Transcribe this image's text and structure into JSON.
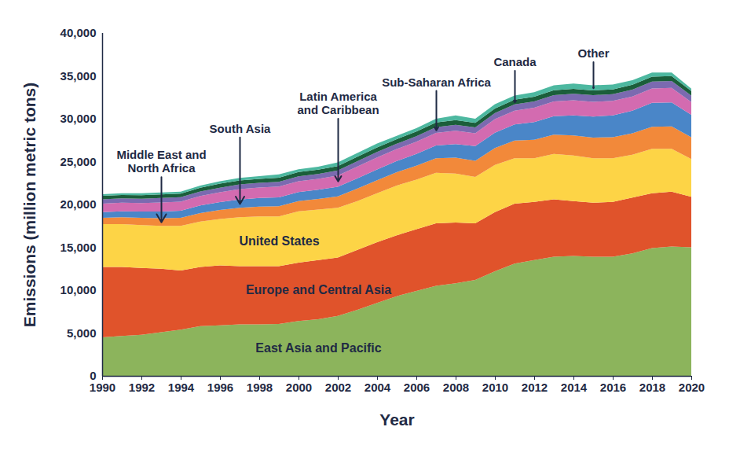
{
  "chart_data": {
    "type": "area",
    "stacked": true,
    "x_label": "Year",
    "y_label": "Emissions (million metric tons)",
    "x": [
      1990,
      1991,
      1992,
      1993,
      1994,
      1995,
      1996,
      1997,
      1998,
      1999,
      2000,
      2001,
      2002,
      2003,
      2004,
      2005,
      2006,
      2007,
      2008,
      2009,
      2010,
      2011,
      2012,
      2013,
      2014,
      2015,
      2016,
      2017,
      2018,
      2019,
      2020
    ],
    "xlim": [
      1990,
      2020
    ],
    "xticks": [
      1990,
      1992,
      1994,
      1996,
      1998,
      2000,
      2002,
      2004,
      2006,
      2008,
      2010,
      2012,
      2014,
      2016,
      2018,
      2020
    ],
    "ylim": [
      0,
      40000
    ],
    "yticks": [
      0,
      {
        "value": 5000,
        "label": "5,000"
      },
      {
        "value": 10000,
        "label": "10,000"
      },
      {
        "value": 15000,
        "label": "15,000"
      },
      {
        "value": 20000,
        "label": "20,000"
      },
      {
        "value": 25000,
        "label": "25,000"
      },
      {
        "value": 30000,
        "label": "30,000"
      },
      {
        "value": 35000,
        "label": "35,000"
      },
      {
        "value": 40000,
        "label": "40,000"
      }
    ],
    "grid": false,
    "series": [
      {
        "name": "East Asia and Pacific",
        "color": "#8cb45c",
        "values": [
          4500,
          4650,
          4800,
          5100,
          5400,
          5800,
          5900,
          6000,
          6000,
          6050,
          6400,
          6600,
          7000,
          7700,
          8500,
          9300,
          9900,
          10500,
          10800,
          11200,
          12200,
          13100,
          13500,
          13900,
          14000,
          13900,
          13900,
          14300,
          14900,
          15100,
          15000
        ]
      },
      {
        "name": "Europe and Central Asia",
        "color": "#e0532b",
        "values": [
          8200,
          8050,
          7800,
          7400,
          6900,
          6900,
          7000,
          6800,
          6800,
          6750,
          6800,
          6900,
          6800,
          7000,
          7100,
          7100,
          7200,
          7300,
          7100,
          6600,
          6900,
          7000,
          6800,
          6700,
          6400,
          6300,
          6400,
          6500,
          6400,
          6400,
          5900
        ]
      },
      {
        "name": "United States",
        "color": "#fdd446",
        "values": [
          5000,
          5000,
          5000,
          5000,
          5200,
          5300,
          5400,
          5700,
          5800,
          5800,
          6000,
          5900,
          5800,
          5700,
          5700,
          5800,
          5800,
          5900,
          5700,
          5400,
          5500,
          5300,
          5100,
          5300,
          5300,
          5200,
          5100,
          5000,
          5200,
          5000,
          4400
        ]
      },
      {
        "name": "Middle East and North Africa",
        "color": "#f2893a",
        "values": [
          750,
          800,
          850,
          900,
          950,
          1000,
          1050,
          1100,
          1150,
          1200,
          1200,
          1250,
          1350,
          1450,
          1520,
          1560,
          1620,
          1700,
          1850,
          1900,
          1980,
          2050,
          2150,
          2250,
          2350,
          2400,
          2450,
          2500,
          2550,
          2600,
          2550
        ]
      },
      {
        "name": "South Asia",
        "color": "#4a86c8",
        "values": [
          650,
          700,
          720,
          780,
          820,
          880,
          920,
          980,
          1000,
          1030,
          1050,
          1070,
          1120,
          1200,
          1260,
          1300,
          1380,
          1480,
          1600,
          1720,
          1800,
          1880,
          2050,
          2150,
          2350,
          2450,
          2550,
          2650,
          2800,
          2800,
          2600
        ]
      },
      {
        "name": "Latin America and Caribbean",
        "color": "#d36bb0",
        "values": [
          1000,
          1000,
          1000,
          1050,
          1060,
          1100,
          1150,
          1200,
          1220,
          1250,
          1260,
          1270,
          1300,
          1380,
          1400,
          1400,
          1420,
          1480,
          1550,
          1480,
          1580,
          1620,
          1680,
          1720,
          1750,
          1720,
          1680,
          1650,
          1680,
          1700,
          1500
        ]
      },
      {
        "name": "Sub-Saharan Africa",
        "color": "#7b6ab0",
        "values": [
          500,
          500,
          500,
          520,
          520,
          530,
          540,
          550,
          550,
          560,
          570,
          570,
          600,
          620,
          640,
          620,
          640,
          650,
          680,
          680,
          700,
          720,
          730,
          740,
          760,
          780,
          780,
          790,
          800,
          800,
          750
        ]
      },
      {
        "name": "Canada",
        "color": "#1b5e3b",
        "values": [
          400,
          400,
          410,
          420,
          420,
          440,
          460,
          470,
          470,
          480,
          500,
          490,
          510,
          530,
          540,
          540,
          540,
          560,
          560,
          530,
          540,
          550,
          560,
          570,
          570,
          560,
          560,
          570,
          580,
          580,
          530
        ]
      },
      {
        "name": "Other",
        "color": "#4db8a0",
        "values": [
          200,
          200,
          220,
          230,
          230,
          250,
          280,
          300,
          310,
          380,
          320,
          350,
          420,
          420,
          440,
          380,
          400,
          430,
          560,
          490,
          500,
          480,
          530,
          570,
          620,
          590,
          580,
          540,
          490,
          420,
          270
        ]
      }
    ]
  }
}
